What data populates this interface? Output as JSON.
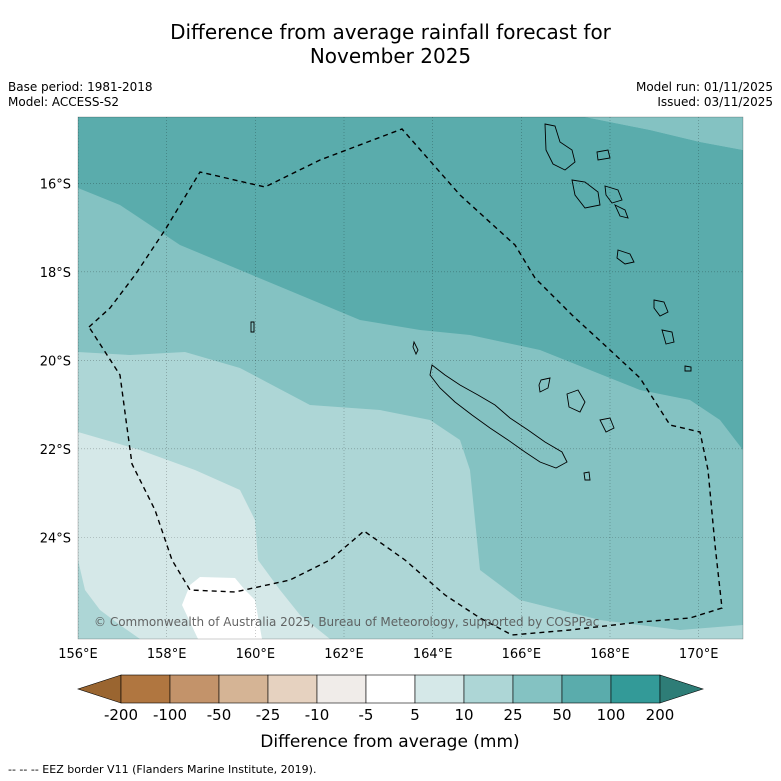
{
  "title_line1": "Difference from average rainfall forecast for",
  "title_line2": "November 2025",
  "meta": {
    "base_period": "Base period: 1981-2018",
    "model": "Model: ACCESS-S2",
    "model_run": "Model run: 01/11/2025",
    "issued": "Issued: 03/11/2025"
  },
  "copyright": "© Commonwealth of Australia 2025, Bureau of Meteorology, supported by COSPPac",
  "footer": "-- -- -- EEZ border V11 (Flanders Marine Institute, 2019).",
  "colors": {
    "c_lt_m200": "#9a6530",
    "c_m200_m100": "#b07640",
    "c_m100_m50": "#c3936a",
    "c_m50_m25": "#d5b495",
    "c_m25_m10": "#e6d2c0",
    "c_m10_m5": "#f0ece9",
    "c_m5_5": "#ffffff",
    "c_5_10": "#d5e8e8",
    "c_10_25": "#add6d6",
    "c_25_50": "#84c2c2",
    "c_50_100": "#5aacac",
    "c_100_200": "#339a98",
    "c_gt_200": "#2e7d77"
  },
  "chart_data": {
    "type": "heatmap",
    "map_type": "filled contour map",
    "x_range": [
      156,
      171
    ],
    "y_range": [
      -26.3,
      -14.5
    ],
    "x_ticks": [
      156,
      158,
      160,
      162,
      164,
      166,
      168,
      170
    ],
    "x_tick_labels": [
      "156°E",
      "158°E",
      "160°E",
      "162°E",
      "164°E",
      "166°E",
      "168°E",
      "170°E"
    ],
    "y_ticks": [
      -16,
      -18,
      -20,
      -22,
      -24
    ],
    "y_tick_labels": [
      "16°S",
      "18°S",
      "20°S",
      "22°S",
      "24°S"
    ],
    "colorbar": {
      "label": "Difference from average (mm)",
      "ticks": [
        "-200",
        "-100",
        "-50",
        "-25",
        "-10",
        "-5",
        "5",
        "10",
        "25",
        "50",
        "100",
        "200"
      ],
      "levels": [
        -200,
        -100,
        -50,
        -25,
        -10,
        -5,
        5,
        10,
        25,
        50,
        100,
        200
      ]
    },
    "region_levels": {
      "north_band": "50 to 100",
      "northeast_corner": "25 to 50",
      "central_band": "25 to 50",
      "southeast": "25 to 50",
      "southwest_band": "10 to 25",
      "southwest_inner": "5 to 10",
      "southwest_patch": "-5 to 5"
    },
    "grid": true,
    "overlays": [
      "coastlines",
      "EEZ border"
    ]
  }
}
